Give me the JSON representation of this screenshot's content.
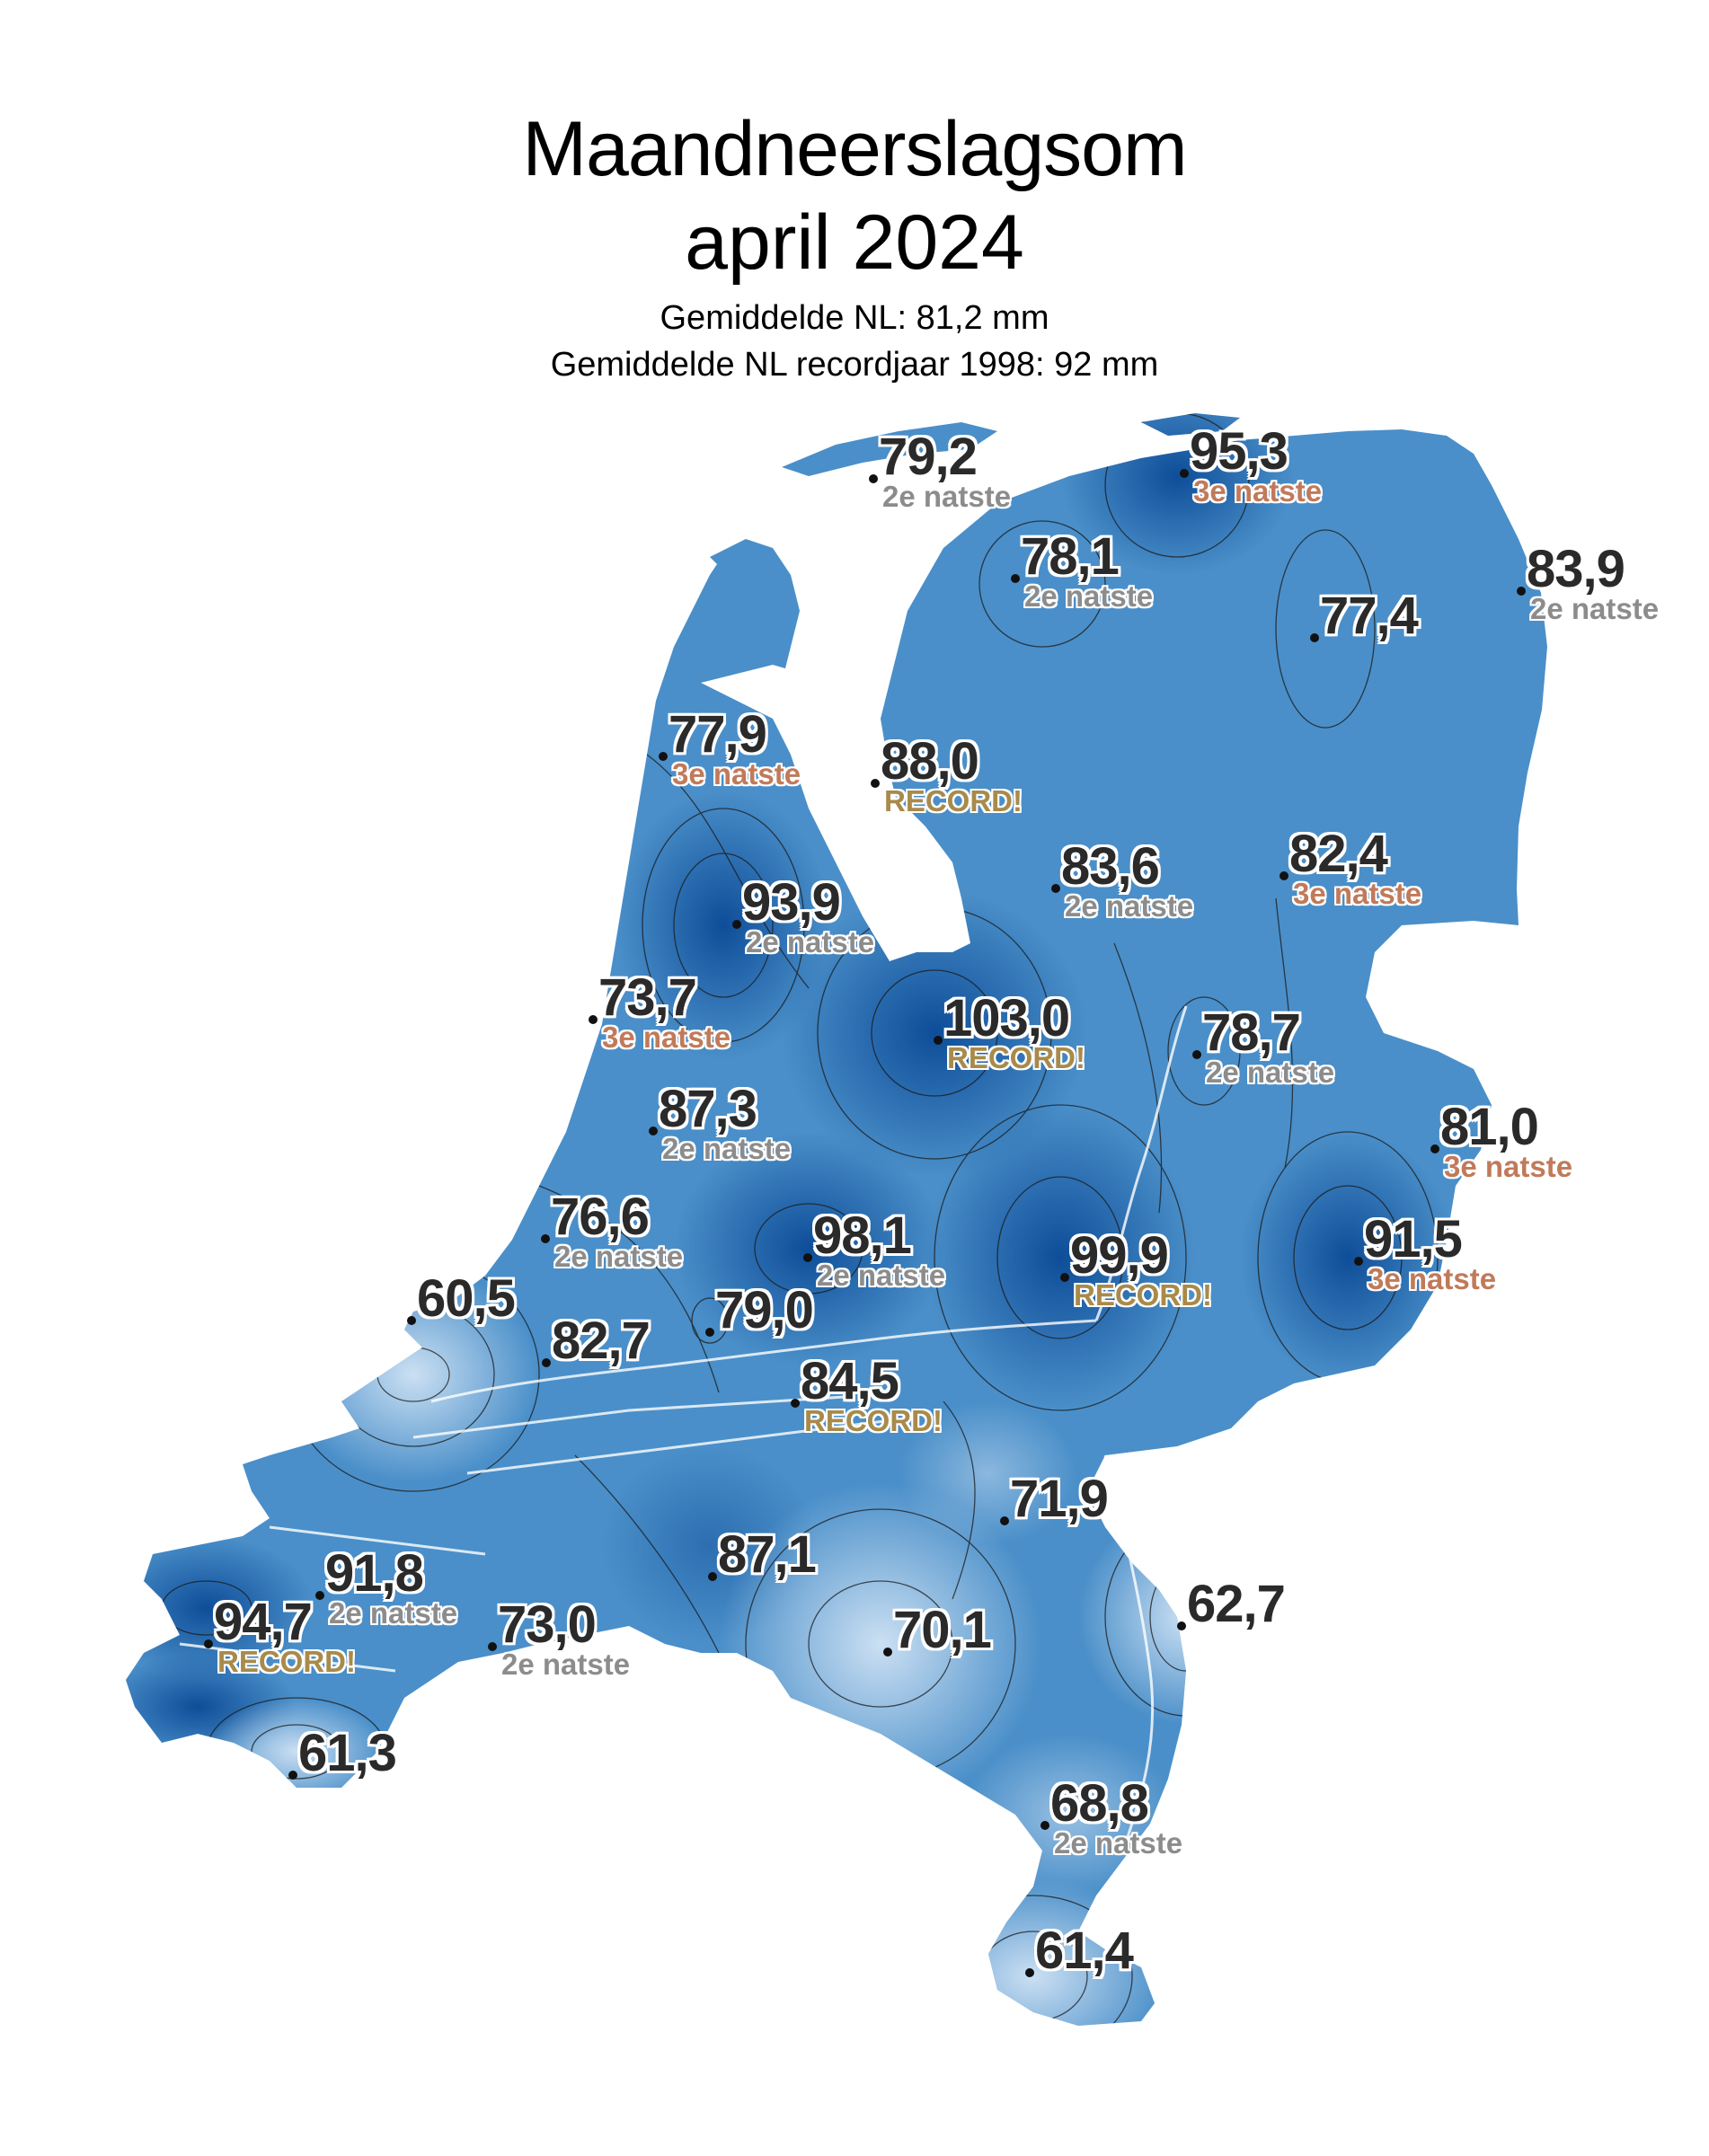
{
  "title": {
    "line1": "Maandneerslagsom",
    "line2": "april 2024",
    "subtitle1": "Gemiddelde NL: 81,2 mm",
    "subtitle2": "Gemiddelde NL recordjaar 1998: 92 mm"
  },
  "colors": {
    "light": "#c6dcf1",
    "mid": "#4a8fc9",
    "dark": "#0d4f9c",
    "note_2e": "#8c8c8c",
    "note_3e": "#c07a5a",
    "note_record": "#a88a4a"
  },
  "stations": [
    {
      "value": "79,2",
      "note": "2e natste",
      "level": "2e"
    },
    {
      "value": "95,3",
      "note": "3e natste",
      "level": "3e"
    },
    {
      "value": "78,1",
      "note": "2e natste",
      "level": "2e"
    },
    {
      "value": "83,9",
      "note": "2e natste",
      "level": "2e"
    },
    {
      "value": "77,4",
      "note": "",
      "level": ""
    },
    {
      "value": "77,9",
      "note": "3e natste",
      "level": "3e"
    },
    {
      "value": "88,0",
      "note": "RECORD!",
      "level": "record"
    },
    {
      "value": "83,6",
      "note": "2e natste",
      "level": "2e"
    },
    {
      "value": "82,4",
      "note": "3e natste",
      "level": "3e"
    },
    {
      "value": "93,9",
      "note": "2e natste",
      "level": "2e"
    },
    {
      "value": "73,7",
      "note": "3e natste",
      "level": "3e"
    },
    {
      "value": "103,0",
      "note": "RECORD!",
      "level": "record"
    },
    {
      "value": "78,7",
      "note": "2e natste",
      "level": "2e"
    },
    {
      "value": "87,3",
      "note": "2e natste",
      "level": "2e"
    },
    {
      "value": "81,0",
      "note": "3e natste",
      "level": "3e"
    },
    {
      "value": "76,6",
      "note": "2e natste",
      "level": "2e"
    },
    {
      "value": "98,1",
      "note": "2e natste",
      "level": "2e"
    },
    {
      "value": "99,9",
      "note": "RECORD!",
      "level": "record"
    },
    {
      "value": "91,5",
      "note": "3e natste",
      "level": "3e"
    },
    {
      "value": "60,5",
      "note": "",
      "level": ""
    },
    {
      "value": "79,0",
      "note": "",
      "level": ""
    },
    {
      "value": "82,7",
      "note": "",
      "level": ""
    },
    {
      "value": "84,5",
      "note": "RECORD!",
      "level": "record"
    },
    {
      "value": "71,9",
      "note": "",
      "level": ""
    },
    {
      "value": "87,1",
      "note": "",
      "level": ""
    },
    {
      "value": "91,8",
      "note": "2e natste",
      "level": "2e"
    },
    {
      "value": "94,7",
      "note": "RECORD!",
      "level": "record"
    },
    {
      "value": "73,0",
      "note": "2e natste",
      "level": "2e"
    },
    {
      "value": "70,1",
      "note": "",
      "level": ""
    },
    {
      "value": "62,7",
      "note": "",
      "level": ""
    },
    {
      "value": "61,3",
      "note": "",
      "level": ""
    },
    {
      "value": "68,8",
      "note": "2e natste",
      "level": "2e"
    },
    {
      "value": "61,4",
      "note": "",
      "level": ""
    }
  ]
}
